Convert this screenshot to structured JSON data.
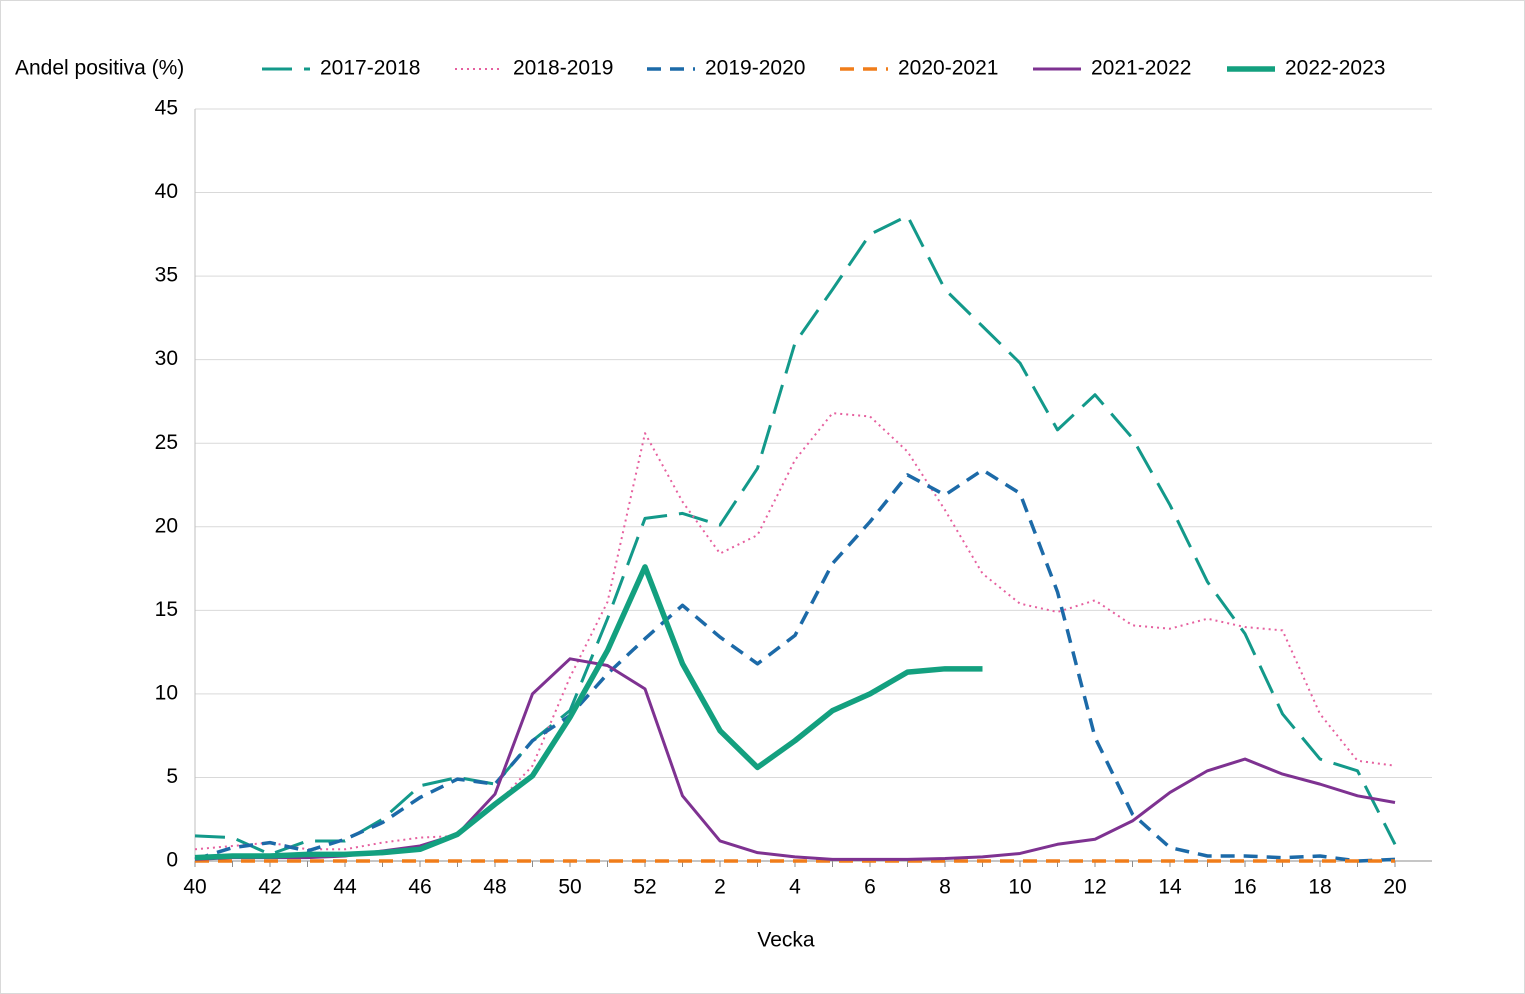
{
  "chart_data": {
    "type": "line",
    "y_axis_label": "Andel positiva (%)",
    "x_axis_label": "Vecka",
    "categories": [
      "40",
      null,
      "42",
      null,
      "44",
      null,
      "46",
      null,
      "48",
      null,
      "50",
      null,
      "52",
      null,
      "2",
      null,
      "4",
      null,
      "6",
      null,
      "8",
      null,
      "10",
      null,
      "12",
      null,
      "14",
      null,
      "16",
      null,
      "18",
      null,
      "20"
    ],
    "ylim": [
      0,
      45
    ],
    "yticks": [
      0,
      5,
      10,
      15,
      20,
      25,
      30,
      35,
      40,
      45
    ],
    "grid": true,
    "series": [
      {
        "name": "2017-2018",
        "color": "#13998a",
        "dash": "long-dash",
        "values": [
          1.5,
          1.4,
          0.4,
          1.2,
          1.2,
          2.5,
          4.5,
          5.0,
          4.6,
          7.2,
          9.0,
          14.5,
          20.5,
          20.8,
          20.1,
          23.5,
          31.0,
          34.2,
          37.5,
          38.6,
          34.2,
          32.0,
          29.8,
          25.8,
          27.9,
          25.3,
          21.3,
          16.7,
          13.6,
          8.8,
          6.1,
          5.4,
          1.0
        ]
      },
      {
        "name": "2018-2019",
        "color": "#e6609f",
        "dash": "dotted",
        "values": [
          0.7,
          0.9,
          1.1,
          0.7,
          0.7,
          1.1,
          1.4,
          1.5,
          3.3,
          5.7,
          11.0,
          15.5,
          25.6,
          21.5,
          18.4,
          19.5,
          24.0,
          26.8,
          26.6,
          24.5,
          21.0,
          17.2,
          15.4,
          14.9,
          15.6,
          14.1,
          13.9,
          14.5,
          14.0,
          13.8,
          8.8,
          6.0,
          5.7
        ]
      },
      {
        "name": "2019-2020",
        "color": "#1c6aa8",
        "dash": "dashed",
        "values": [
          0.1,
          0.8,
          1.1,
          0.6,
          1.3,
          2.3,
          3.8,
          4.9,
          4.6,
          7.2,
          8.7,
          11.2,
          13.3,
          15.3,
          13.4,
          11.8,
          13.5,
          17.8,
          20.3,
          23.1,
          21.9,
          23.4,
          22.0,
          16.1,
          7.4,
          2.8,
          0.8,
          0.3,
          0.3,
          0.2,
          0.3,
          0,
          0.1
        ]
      },
      {
        "name": "2020-2021",
        "color": "#f07d1a",
        "dash": "dashed",
        "values": [
          0,
          0,
          0,
          0,
          0,
          0,
          0,
          0,
          0,
          0,
          0,
          0,
          0,
          0,
          0,
          0,
          0,
          0,
          0,
          0,
          0,
          0,
          0,
          0,
          0,
          0,
          0,
          0,
          0,
          0,
          0,
          0,
          0
        ]
      },
      {
        "name": "2021-2022",
        "color": "#7e3291",
        "dash": "solid",
        "values": [
          0.1,
          0.2,
          0.2,
          0.2,
          0.3,
          0.6,
          0.9,
          1.6,
          4.0,
          10.0,
          12.1,
          11.7,
          10.3,
          3.9,
          1.2,
          0.5,
          0.25,
          0.1,
          0.1,
          0.1,
          0.15,
          0.25,
          0.45,
          1.0,
          1.3,
          2.4,
          4.1,
          5.4,
          6.1,
          5.2,
          4.6,
          3.9,
          3.5
        ]
      },
      {
        "name": "2022-2023",
        "color": "#13a07f",
        "dash": "thick",
        "values": [
          0.2,
          0.3,
          0.3,
          0.4,
          0.4,
          0.5,
          0.7,
          1.6,
          3.4,
          5.1,
          8.6,
          12.6,
          17.6,
          11.8,
          7.8,
          5.6,
          7.2,
          9.0,
          10.0,
          11.3,
          11.5,
          11.5,
          null,
          null,
          null,
          null,
          null,
          null,
          null,
          null,
          null,
          null,
          null
        ]
      }
    ]
  }
}
